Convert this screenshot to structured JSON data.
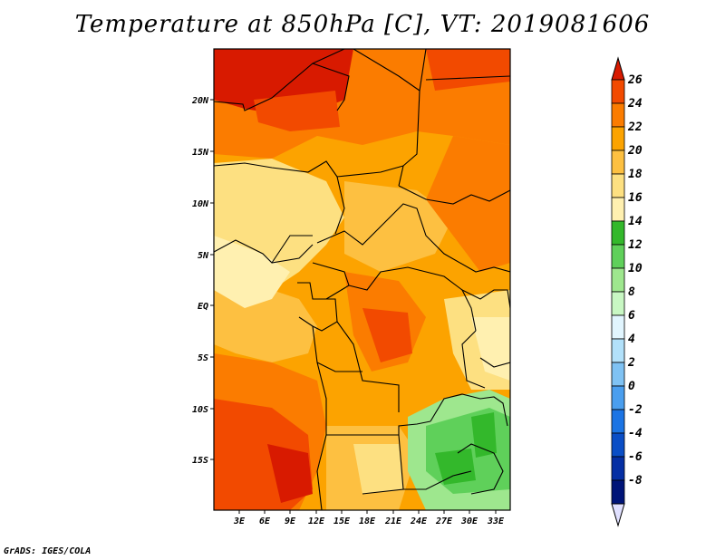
{
  "title": "Temperature at 850hPa [C], VT: 2019081606",
  "credit": "GrADS: IGES/COLA",
  "lat_labels": [
    "20N",
    "15N",
    "10N",
    "5N",
    "EQ",
    "5S",
    "10S",
    "15S"
  ],
  "lon_labels": [
    "3E",
    "6E",
    "9E",
    "12E",
    "15E",
    "18E",
    "21E",
    "24E",
    "27E",
    "30E",
    "33E"
  ],
  "colorbar": {
    "levels": [
      "26",
      "24",
      "22",
      "20",
      "18",
      "16",
      "14",
      "12",
      "10",
      "8",
      "6",
      "4",
      "2",
      "0",
      "-2",
      "-4",
      "-6",
      "-8"
    ],
    "colors": [
      "#d81a00",
      "#f24a00",
      "#fb7c00",
      "#fca300",
      "#fdc041",
      "#fde081",
      "#fff0b0",
      "#33b82b",
      "#5fd05a",
      "#9ee78e",
      "#c8f7c3",
      "#e1f5fe",
      "#b2e1fa",
      "#7fc2f3",
      "#4a9eee",
      "#1b74e4",
      "#0a4ec6",
      "#052fa4",
      "#001478",
      "#e0e0ff"
    ]
  }
}
